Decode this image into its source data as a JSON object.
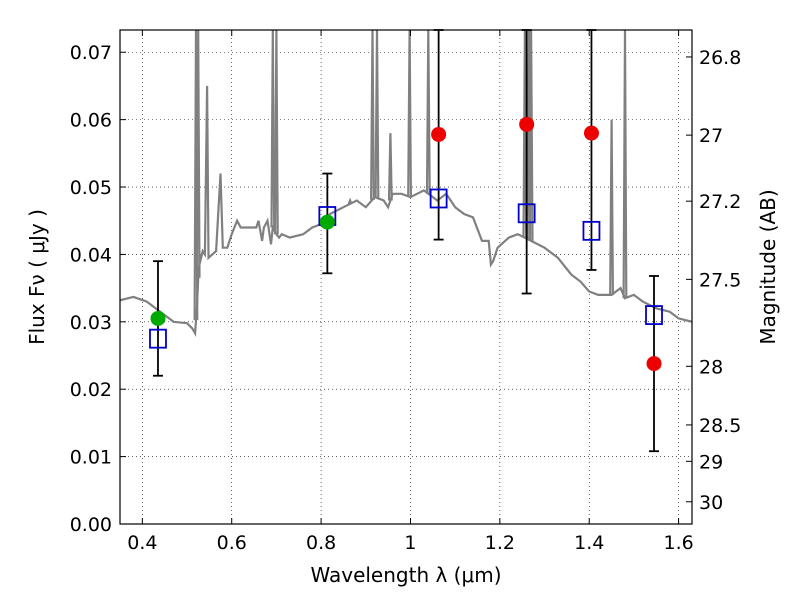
{
  "chart_data": {
    "type": "scatter",
    "xlabel": "Wavelength  λ (μm)",
    "ylabel": "Flux  Fν  ( μJy )",
    "y2label": "Magnitude (AB)",
    "xlim": [
      0.35,
      1.63
    ],
    "ylim": [
      0.0,
      0.0733
    ],
    "grid": true,
    "x_ticks": [
      {
        "v": 0.4,
        "t": "0.4"
      },
      {
        "v": 0.6,
        "t": "0.6"
      },
      {
        "v": 0.8,
        "t": "0.8"
      },
      {
        "v": 1.0,
        "t": "1"
      },
      {
        "v": 1.2,
        "t": "1.2"
      },
      {
        "v": 1.4,
        "t": "1.4"
      },
      {
        "v": 1.6,
        "t": "1.6"
      }
    ],
    "y_ticks": [
      {
        "v": 0.0,
        "t": "0.00"
      },
      {
        "v": 0.01,
        "t": "0.01"
      },
      {
        "v": 0.02,
        "t": "0.02"
      },
      {
        "v": 0.03,
        "t": "0.03"
      },
      {
        "v": 0.04,
        "t": "0.04"
      },
      {
        "v": 0.05,
        "t": "0.05"
      },
      {
        "v": 0.06,
        "t": "0.06"
      },
      {
        "v": 0.07,
        "t": "0.07"
      }
    ],
    "mag_ticks": [
      {
        "flux": 0.0693,
        "t": "26.8"
      },
      {
        "flux": 0.0577,
        "t": "27"
      },
      {
        "flux": 0.0479,
        "t": "27.2"
      },
      {
        "flux": 0.0363,
        "t": "27.5"
      },
      {
        "flux": 0.0234,
        "t": "28"
      },
      {
        "flux": 0.0147,
        "t": "28.5"
      },
      {
        "flux": 0.0093,
        "t": "29"
      },
      {
        "flux": 0.0033,
        "t": "30"
      }
    ],
    "series": [
      {
        "kind": "model_spectrum",
        "color": "#808080",
        "points": [
          [
            0.35,
            0.0332
          ],
          [
            0.38,
            0.0337
          ],
          [
            0.41,
            0.033
          ],
          [
            0.44,
            0.0315
          ],
          [
            0.47,
            0.03
          ],
          [
            0.5,
            0.0298
          ],
          [
            0.512,
            0.029
          ],
          [
            0.518,
            0.0283
          ],
          [
            0.522,
            0.0322
          ],
          [
            0.526,
            0.038
          ],
          [
            0.535,
            0.0405
          ],
          [
            0.54,
            0.04
          ],
          [
            0.545,
            0.065
          ],
          [
            0.548,
            0.0395
          ],
          [
            0.565,
            0.0405
          ],
          [
            0.575,
            0.052
          ],
          [
            0.58,
            0.041
          ],
          [
            0.59,
            0.041
          ],
          [
            0.6,
            0.043
          ],
          [
            0.612,
            0.045
          ],
          [
            0.62,
            0.044
          ],
          [
            0.64,
            0.044
          ],
          [
            0.655,
            0.044
          ],
          [
            0.66,
            0.045
          ],
          [
            0.668,
            0.042
          ],
          [
            0.672,
            0.044
          ],
          [
            0.68,
            0.045
          ],
          [
            0.688,
            0.0415
          ],
          [
            0.692,
            0.044
          ],
          [
            0.7,
            0.043
          ],
          [
            0.706,
            0.0425
          ],
          [
            0.712,
            0.043
          ],
          [
            0.73,
            0.0425
          ],
          [
            0.76,
            0.043
          ],
          [
            0.78,
            0.044
          ],
          [
            0.8,
            0.0445
          ],
          [
            0.82,
            0.046
          ],
          [
            0.85,
            0.047
          ],
          [
            0.88,
            0.048
          ],
          [
            0.9,
            0.047
          ],
          [
            0.92,
            0.0485
          ],
          [
            0.94,
            0.048
          ],
          [
            0.95,
            0.047
          ],
          [
            0.96,
            0.049
          ],
          [
            0.98,
            0.049
          ],
          [
            1.0,
            0.0485
          ],
          [
            1.03,
            0.0495
          ],
          [
            1.06,
            0.048
          ],
          [
            1.08,
            0.049
          ],
          [
            1.1,
            0.047
          ],
          [
            1.12,
            0.046
          ],
          [
            1.14,
            0.0455
          ],
          [
            1.16,
            0.042
          ],
          [
            1.175,
            0.042
          ],
          [
            1.18,
            0.0385
          ],
          [
            1.185,
            0.039
          ],
          [
            1.195,
            0.041
          ],
          [
            1.22,
            0.0425
          ],
          [
            1.24,
            0.043
          ],
          [
            1.27,
            0.042
          ],
          [
            1.3,
            0.041
          ],
          [
            1.33,
            0.0395
          ],
          [
            1.36,
            0.037
          ],
          [
            1.38,
            0.036
          ],
          [
            1.4,
            0.0345
          ],
          [
            1.42,
            0.034
          ],
          [
            1.45,
            0.034
          ],
          [
            1.47,
            0.035
          ],
          [
            1.48,
            0.0335
          ],
          [
            1.5,
            0.034
          ],
          [
            1.52,
            0.033
          ],
          [
            1.55,
            0.032
          ],
          [
            1.58,
            0.0315
          ],
          [
            1.6,
            0.0305
          ],
          [
            1.63,
            0.03
          ]
        ],
        "emission_lines": [
          [
            0.52,
            0.0733
          ],
          [
            0.525,
            0.0733
          ],
          [
            0.692,
            0.0733
          ],
          [
            0.7,
            0.0733
          ],
          [
            0.865,
            0.048
          ],
          [
            0.915,
            0.0733
          ],
          [
            0.925,
            0.0733
          ],
          [
            0.955,
            0.058
          ],
          [
            0.998,
            0.0733
          ],
          [
            1.04,
            0.0733
          ],
          [
            1.256,
            0.0733
          ],
          [
            1.265,
            0.0733
          ],
          [
            1.27,
            0.0733
          ],
          [
            1.45,
            0.06
          ],
          [
            1.48,
            0.0733
          ]
        ]
      },
      {
        "kind": "model_bandpass",
        "marker": "open-square",
        "color": "#0000cc",
        "x": [
          0.435,
          0.814,
          1.063,
          1.26,
          1.405,
          1.545
        ],
        "y": [
          0.0275,
          0.0457,
          0.0483,
          0.0461,
          0.0435,
          0.031
        ]
      },
      {
        "kind": "detections",
        "marker": "filled-circle",
        "color": "#00aa00",
        "x": [
          0.435,
          0.814
        ],
        "y": [
          0.0305,
          0.0448
        ],
        "yerr_low": [
          0.022,
          0.0372
        ],
        "yerr_high": [
          0.039,
          0.052
        ]
      },
      {
        "kind": "upper_limits",
        "marker": "filled-circle",
        "color": "#ee0000",
        "x": [
          1.063,
          1.26,
          1.405,
          1.545
        ],
        "y": [
          0.0578,
          0.0593,
          0.058,
          0.0238
        ],
        "yerr_low": [
          0.0422,
          0.0342,
          0.0377,
          0.0108
        ],
        "yerr_high": [
          0.0733,
          0.0733,
          0.0733,
          0.0368
        ]
      }
    ]
  }
}
